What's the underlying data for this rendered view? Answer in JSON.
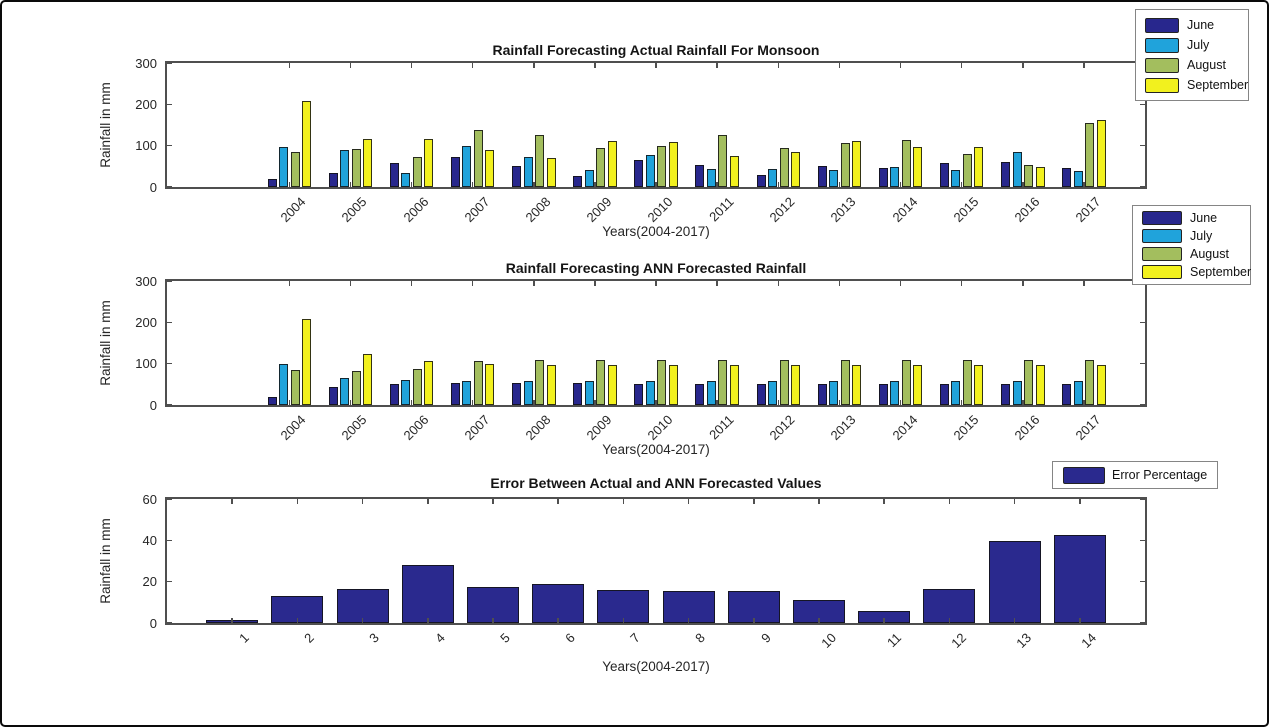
{
  "colors": {
    "june": "#28278D",
    "july": "#20A3DB",
    "august": "#A3BE5E",
    "september": "#F2F11E",
    "error_bar": "#2A298E",
    "axis": "#4f4f4f",
    "bar_edge": "#121212",
    "legend_border": "#858585",
    "background": "#ffffff",
    "frame_border": "#0a0a0a"
  },
  "chart_data": [
    {
      "type": "bar",
      "title": "Rainfall Forecasting Actual Rainfall For Monsoon",
      "xlabel": "Years(2004-2017)",
      "ylabel": "Rainfall in mm",
      "ylim": [
        0,
        300
      ],
      "yticks": [
        0,
        100,
        200,
        300
      ],
      "xlim": [
        2002,
        2018
      ],
      "grid": false,
      "legend_position": "top-right-outside",
      "categories": [
        "2004",
        "2005",
        "2006",
        "2007",
        "2008",
        "2009",
        "2010",
        "2011",
        "2012",
        "2013",
        "2014",
        "2015",
        "2016",
        "2017"
      ],
      "series": [
        {
          "name": "June",
          "color": "#28278D",
          "values": [
            20,
            35,
            57,
            72,
            51,
            26,
            66,
            53,
            28,
            52,
            45,
            59,
            60,
            45
          ]
        },
        {
          "name": "July",
          "color": "#20A3DB",
          "values": [
            97,
            90,
            33,
            100,
            73,
            40,
            78,
            44,
            44,
            42,
            48,
            40,
            84,
            38
          ]
        },
        {
          "name": "August",
          "color": "#A3BE5E",
          "values": [
            85,
            92,
            73,
            137,
            126,
            94,
            100,
            127,
            95,
            107,
            114,
            79,
            53,
            156
          ]
        },
        {
          "name": "September",
          "color": "#F2F11E",
          "values": [
            208,
            117,
            115,
            89,
            70,
            112,
            110,
            76,
            84,
            112,
            96,
            96,
            48,
            162
          ]
        }
      ]
    },
    {
      "type": "bar",
      "title": "Rainfall Forecasting ANN Forecasted Rainfall",
      "xlabel": "Years(2004-2017)",
      "ylabel": "Rainfall in mm",
      "ylim": [
        0,
        300
      ],
      "yticks": [
        0,
        100,
        200,
        300
      ],
      "xlim": [
        2002,
        2018
      ],
      "grid": false,
      "legend_position": "top-right-outside",
      "categories": [
        "2004",
        "2005",
        "2006",
        "2007",
        "2008",
        "2009",
        "2010",
        "2011",
        "2012",
        "2013",
        "2014",
        "2015",
        "2016",
        "2017"
      ],
      "series": [
        {
          "name": "June",
          "color": "#28278D",
          "values": [
            20,
            44,
            50,
            53,
            53,
            54,
            52,
            52,
            52,
            52,
            52,
            52,
            52,
            52
          ]
        },
        {
          "name": "July",
          "color": "#20A3DB",
          "values": [
            100,
            66,
            61,
            59,
            59,
            59,
            58,
            58,
            58,
            58,
            58,
            58,
            58,
            58
          ]
        },
        {
          "name": "August",
          "color": "#A3BE5E",
          "values": [
            85,
            83,
            88,
            107,
            110,
            109,
            110,
            110,
            110,
            110,
            110,
            110,
            110,
            110
          ]
        },
        {
          "name": "September",
          "color": "#F2F11E",
          "values": [
            208,
            123,
            107,
            98,
            97,
            96,
            97,
            97,
            97,
            97,
            97,
            97,
            97,
            96
          ]
        }
      ]
    },
    {
      "type": "bar",
      "title": "Error Between Actual and ANN Forecasted Values",
      "xlabel": "Years(2004-2017)",
      "ylabel": "Rainfall in mm",
      "ylim": [
        0,
        60
      ],
      "yticks": [
        0,
        20,
        40,
        60
      ],
      "xlim": [
        0,
        15
      ],
      "grid": false,
      "legend_position": "top-right-outside",
      "categories": [
        "1",
        "2",
        "3",
        "4",
        "5",
        "6",
        "7",
        "8",
        "9",
        "10",
        "11",
        "12",
        "13",
        "14"
      ],
      "series": [
        {
          "name": "Error Percentage",
          "color": "#2A298E",
          "values": [
            1.5,
            13,
            16.5,
            28,
            17.5,
            19,
            16,
            15.5,
            15.5,
            11,
            6,
            16.5,
            39.5,
            42.5
          ]
        }
      ]
    }
  ]
}
